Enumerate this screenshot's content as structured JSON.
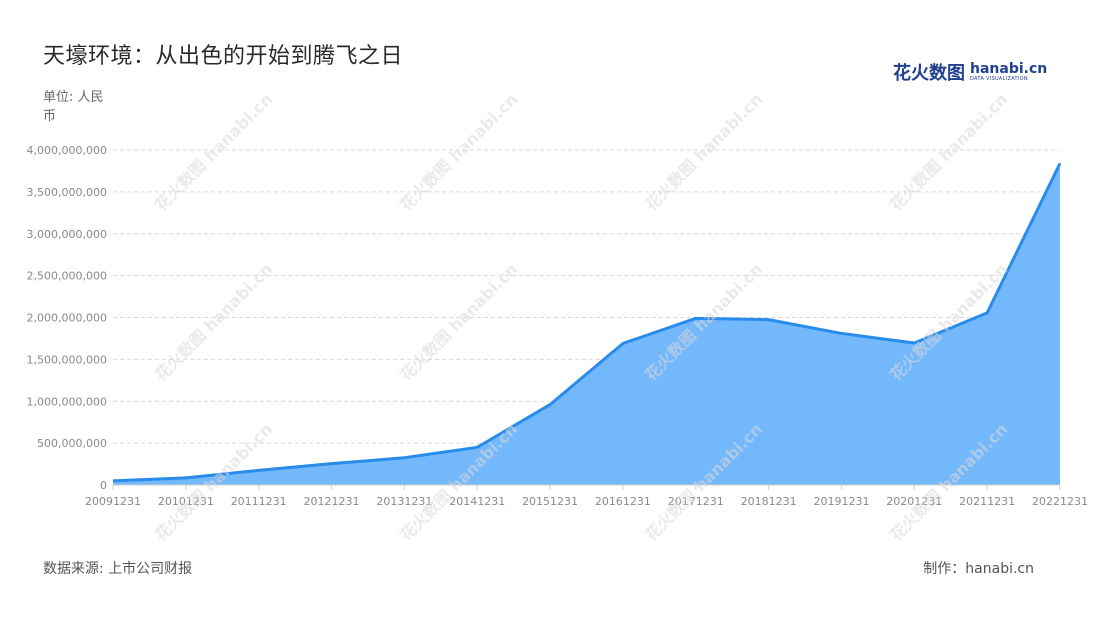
{
  "title": "天壕环境：从出色的开始到腾飞之日",
  "unit": "单位: 人民币",
  "logo": {
    "main": "花火数图",
    "name": "hanabi.cn",
    "tagline": "DATA VISUALIZATION"
  },
  "source": "数据来源: 上市公司财报",
  "credit": "制作：hanabi.cn",
  "watermark_text": "花火数图 hanabi.cn",
  "colors": {
    "line": "#2a8cea",
    "area": "#74b8fc",
    "grid": "#d9d9d9",
    "axis_text": "#8a8a8a"
  },
  "chart_data": {
    "type": "area",
    "x": [
      "20091231",
      "20101231",
      "20111231",
      "20121231",
      "20131231",
      "20141231",
      "20151231",
      "20161231",
      "20171231",
      "20181231",
      "20191231",
      "20201231",
      "20211231",
      "20221231"
    ],
    "series": [
      {
        "values": [
          50000000,
          85000000,
          175000000,
          255000000,
          325000000,
          450000000,
          960000000,
          1690000000,
          1990000000,
          1975000000,
          1810000000,
          1695000000,
          2055000000,
          3840000000
        ]
      }
    ],
    "yticks": [
      0,
      500000000,
      1000000000,
      1500000000,
      2000000000,
      2500000000,
      3000000000,
      3500000000,
      4000000000
    ],
    "ytick_labels": [
      "0",
      "500,000,000",
      "1,000,000,000",
      "1,500,000,000",
      "2,000,000,000",
      "2,500,000,000",
      "3,000,000,000",
      "3,500,000,000",
      "4,000,000,000"
    ],
    "ylim": [
      0,
      4000000000
    ],
    "grid": true,
    "legend": "none"
  }
}
